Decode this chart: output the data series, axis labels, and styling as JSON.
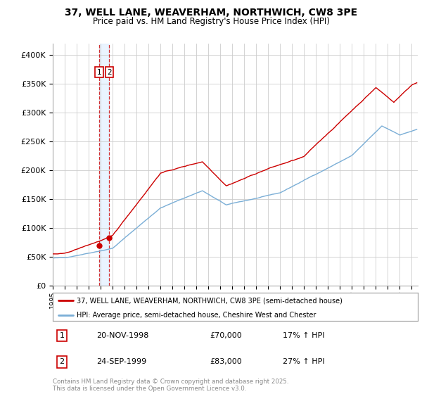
{
  "title_line1": "37, WELL LANE, WEAVERHAM, NORTHWICH, CW8 3PE",
  "title_line2": "Price paid vs. HM Land Registry's House Price Index (HPI)",
  "background_color": "#ffffff",
  "grid_color": "#cccccc",
  "red_line_color": "#cc0000",
  "blue_line_color": "#7aaed6",
  "sale1_date": "20-NOV-1998",
  "sale1_price": 70000,
  "sale1_hpi_pct": "17%",
  "sale2_date": "24-SEP-1999",
  "sale2_price": 83000,
  "sale2_hpi_pct": "27%",
  "legend_label1": "37, WELL LANE, WEAVERHAM, NORTHWICH, CW8 3PE (semi-detached house)",
  "legend_label2": "HPI: Average price, semi-detached house, Cheshire West and Chester",
  "footer": "Contains HM Land Registry data © Crown copyright and database right 2025.\nThis data is licensed under the Open Government Licence v3.0.",
  "ylim": [
    0,
    420000
  ],
  "yticks": [
    0,
    50000,
    100000,
    150000,
    200000,
    250000,
    300000,
    350000,
    400000
  ],
  "sale1_year": 1998.89,
  "sale2_year": 1999.73,
  "xmin": 1995.0,
  "xmax": 2025.5
}
